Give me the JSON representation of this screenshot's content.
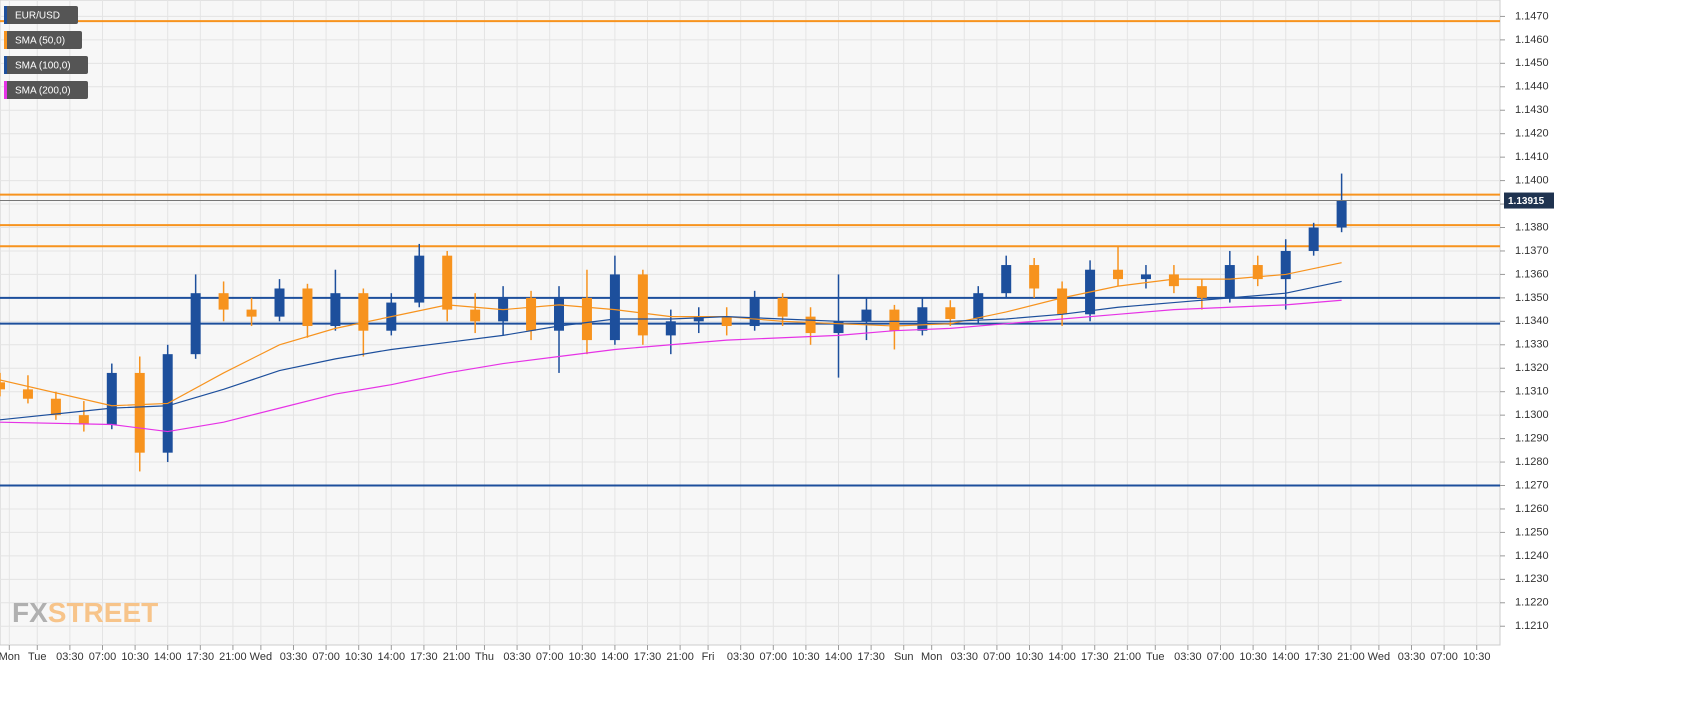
{
  "chart_data": {
    "type": "candlestick",
    "name": "EUR/USD",
    "up_color": "#1d4f9c",
    "down_color": "#f7931e",
    "x": [
      -4,
      -1,
      2,
      5,
      8,
      11,
      14,
      17,
      20,
      23,
      26,
      29,
      32,
      35,
      38,
      41,
      44,
      47,
      50,
      53,
      56,
      59,
      62,
      65,
      68,
      71,
      74,
      77,
      80,
      83,
      86,
      89,
      92,
      95,
      98,
      101,
      104,
      107,
      110,
      113,
      116,
      119,
      122,
      125,
      128,
      131,
      134,
      137,
      140
    ],
    "open": [
      1.1314,
      1.1311,
      1.1307,
      1.13,
      1.1296,
      1.1318,
      1.1284,
      1.1326,
      1.1352,
      1.1345,
      1.1342,
      1.1354,
      1.1338,
      1.1352,
      1.1336,
      1.1348,
      1.1368,
      1.1345,
      1.134,
      1.135,
      1.1336,
      1.135,
      1.1332,
      1.136,
      1.1334,
      1.134,
      1.1342,
      1.1338,
      1.135,
      1.1342,
      1.1335,
      1.134,
      1.1345,
      1.1336,
      1.1346,
      1.1341,
      1.1352,
      1.1364,
      1.1354,
      1.1343,
      1.1362,
      1.1358,
      1.136,
      1.1355,
      1.135,
      1.1364,
      1.1358,
      1.137,
      1.138
    ],
    "high": [
      1.1318,
      1.1317,
      1.131,
      1.1306,
      1.1322,
      1.1325,
      1.133,
      1.136,
      1.1357,
      1.135,
      1.1358,
      1.1356,
      1.1362,
      1.1354,
      1.1352,
      1.1373,
      1.137,
      1.1352,
      1.1355,
      1.1353,
      1.1355,
      1.1362,
      1.1368,
      1.1362,
      1.1345,
      1.1346,
      1.1346,
      1.1353,
      1.1352,
      1.1346,
      1.136,
      1.135,
      1.1347,
      1.135,
      1.1349,
      1.1355,
      1.1368,
      1.1367,
      1.1357,
      1.1366,
      1.1372,
      1.1364,
      1.1364,
      1.1358,
      1.137,
      1.1368,
      1.1375,
      1.1382,
      1.1403
    ],
    "low": [
      1.1308,
      1.1305,
      1.1298,
      1.1293,
      1.1294,
      1.1276,
      1.128,
      1.1324,
      1.134,
      1.1338,
      1.134,
      1.1333,
      1.1336,
      1.1325,
      1.1334,
      1.1346,
      1.134,
      1.1335,
      1.1334,
      1.1332,
      1.1318,
      1.1326,
      1.133,
      1.133,
      1.1326,
      1.1335,
      1.1334,
      1.1336,
      1.1338,
      1.133,
      1.1316,
      1.1332,
      1.1328,
      1.1334,
      1.1338,
      1.1339,
      1.135,
      1.135,
      1.1338,
      1.134,
      1.1355,
      1.1354,
      1.1352,
      1.1345,
      1.1348,
      1.1355,
      1.1345,
      1.1368,
      1.1378
    ],
    "close": [
      1.1311,
      1.1307,
      1.13,
      1.1296,
      1.1318,
      1.1284,
      1.1326,
      1.1352,
      1.1345,
      1.1342,
      1.1354,
      1.1338,
      1.1352,
      1.1336,
      1.1348,
      1.1368,
      1.1345,
      1.134,
      1.135,
      1.1336,
      1.135,
      1.1332,
      1.136,
      1.1334,
      1.134,
      1.1342,
      1.1338,
      1.135,
      1.1342,
      1.1335,
      1.134,
      1.1345,
      1.1336,
      1.1346,
      1.1341,
      1.1352,
      1.1364,
      1.1354,
      1.1343,
      1.1362,
      1.1358,
      1.136,
      1.1355,
      1.135,
      1.1364,
      1.1358,
      1.137,
      1.138,
      1.13915
    ],
    "series": [
      {
        "name": "SMA (50,0)",
        "color": "#f7931e",
        "x": [
          -4,
          8,
          14,
          20,
          26,
          32,
          38,
          44,
          50,
          56,
          62,
          68,
          74,
          80,
          86,
          92,
          98,
          104,
          110,
          116,
          122,
          128,
          134,
          140
        ],
        "values": [
          1.1315,
          1.1304,
          1.1305,
          1.1318,
          1.133,
          1.1337,
          1.1342,
          1.1347,
          1.1345,
          1.1347,
          1.1345,
          1.1342,
          1.1342,
          1.134,
          1.1339,
          1.1338,
          1.1339,
          1.1344,
          1.135,
          1.1355,
          1.1358,
          1.1358,
          1.136,
          1.1365
        ]
      },
      {
        "name": "SMA (100,0)",
        "color": "#1d4f9c",
        "x": [
          -4,
          8,
          14,
          20,
          26,
          32,
          38,
          44,
          50,
          56,
          62,
          68,
          74,
          80,
          86,
          92,
          98,
          104,
          110,
          116,
          122,
          128,
          134,
          140
        ],
        "values": [
          1.1298,
          1.1303,
          1.1304,
          1.1311,
          1.1319,
          1.1324,
          1.1328,
          1.1331,
          1.1334,
          1.1338,
          1.1341,
          1.1341,
          1.1342,
          1.1341,
          1.134,
          1.134,
          1.134,
          1.1341,
          1.1343,
          1.1346,
          1.1348,
          1.135,
          1.1352,
          1.1357
        ]
      },
      {
        "name": "SMA (200,0)",
        "color": "#e633e6",
        "x": [
          -4,
          8,
          14,
          20,
          26,
          32,
          38,
          44,
          50,
          56,
          62,
          68,
          74,
          80,
          86,
          92,
          98,
          104,
          110,
          116,
          122,
          128,
          134,
          140
        ],
        "values": [
          1.1297,
          1.1296,
          1.1293,
          1.1297,
          1.1303,
          1.1309,
          1.1313,
          1.1318,
          1.1322,
          1.1325,
          1.1328,
          1.133,
          1.1332,
          1.1333,
          1.1334,
          1.1336,
          1.1337,
          1.1339,
          1.1341,
          1.1343,
          1.1345,
          1.1346,
          1.1347,
          1.1349
        ]
      }
    ],
    "levels": [
      {
        "value": 1.1468,
        "color": "#f7931e"
      },
      {
        "value": 1.1394,
        "color": "#f7931e"
      },
      {
        "value": 1.1381,
        "color": "#f7931e"
      },
      {
        "value": 1.1372,
        "color": "#f7931e"
      },
      {
        "value": 1.135,
        "color": "#1d4f9c"
      },
      {
        "value": 1.1339,
        "color": "#1d4f9c"
      },
      {
        "value": 1.127,
        "color": "#1d4f9c"
      }
    ],
    "last_price": 1.13915,
    "watermark": [
      "FX",
      "STREET"
    ],
    "xlim": [
      -4,
      157
    ],
    "ylim": [
      1.1202,
      1.1477
    ],
    "grid": true,
    "xticks": [
      {
        "value": -3,
        "label": "Mon"
      },
      {
        "value": 0,
        "label": "Tue"
      },
      {
        "value": 3.5,
        "label": "03:30"
      },
      {
        "value": 7,
        "label": "07:00"
      },
      {
        "value": 10.5,
        "label": "10:30"
      },
      {
        "value": 14,
        "label": "14:00"
      },
      {
        "value": 17.5,
        "label": "17:30"
      },
      {
        "value": 21,
        "label": "21:00"
      },
      {
        "value": 24,
        "label": "Wed"
      },
      {
        "value": 27.5,
        "label": "03:30"
      },
      {
        "value": 31,
        "label": "07:00"
      },
      {
        "value": 34.5,
        "label": "10:30"
      },
      {
        "value": 38,
        "label": "14:00"
      },
      {
        "value": 41.5,
        "label": "17:30"
      },
      {
        "value": 45,
        "label": "21:00"
      },
      {
        "value": 48,
        "label": "Thu"
      },
      {
        "value": 51.5,
        "label": "03:30"
      },
      {
        "value": 55,
        "label": "07:00"
      },
      {
        "value": 58.5,
        "label": "10:30"
      },
      {
        "value": 62,
        "label": "14:00"
      },
      {
        "value": 65.5,
        "label": "17:30"
      },
      {
        "value": 69,
        "label": "21:00"
      },
      {
        "value": 72,
        "label": "Fri"
      },
      {
        "value": 75.5,
        "label": "03:30"
      },
      {
        "value": 79,
        "label": "07:00"
      },
      {
        "value": 82.5,
        "label": "10:30"
      },
      {
        "value": 86,
        "label": "14:00"
      },
      {
        "value": 89.5,
        "label": "17:30"
      },
      {
        "value": 93,
        "label": "Sun"
      },
      {
        "value": 96,
        "label": "Mon"
      },
      {
        "value": 99.5,
        "label": "03:30"
      },
      {
        "value": 103,
        "label": "07:00"
      },
      {
        "value": 106.5,
        "label": "10:30"
      },
      {
        "value": 110,
        "label": "14:00"
      },
      {
        "value": 113.5,
        "label": "17:30"
      },
      {
        "value": 117,
        "label": "21:00"
      },
      {
        "value": 120,
        "label": "Tue"
      },
      {
        "value": 123.5,
        "label": "03:30"
      },
      {
        "value": 127,
        "label": "07:00"
      },
      {
        "value": 130.5,
        "label": "10:30"
      },
      {
        "value": 134,
        "label": "14:00"
      },
      {
        "value": 137.5,
        "label": "17:30"
      },
      {
        "value": 141,
        "label": "21:00"
      },
      {
        "value": 144,
        "label": "Wed"
      },
      {
        "value": 147.5,
        "label": "03:30"
      },
      {
        "value": 151,
        "label": "07:00"
      },
      {
        "value": 154.5,
        "label": "10:30"
      }
    ],
    "yticks": [
      {
        "value": 1.121,
        "label": "1.1210"
      },
      {
        "value": 1.122,
        "label": "1.1220"
      },
      {
        "value": 1.123,
        "label": "1.1230"
      },
      {
        "value": 1.124,
        "label": "1.1240"
      },
      {
        "value": 1.125,
        "label": "1.1250"
      },
      {
        "value": 1.126,
        "label": "1.1260"
      },
      {
        "value": 1.127,
        "label": "1.1270"
      },
      {
        "value": 1.128,
        "label": "1.1280"
      },
      {
        "value": 1.129,
        "label": "1.1290"
      },
      {
        "value": 1.13,
        "label": "1.1300"
      },
      {
        "value": 1.131,
        "label": "1.1310"
      },
      {
        "value": 1.132,
        "label": "1.1320"
      },
      {
        "value": 1.133,
        "label": "1.1330"
      },
      {
        "value": 1.134,
        "label": "1.1340"
      },
      {
        "value": 1.135,
        "label": "1.1350"
      },
      {
        "value": 1.136,
        "label": "1.1360"
      },
      {
        "value": 1.137,
        "label": "1.1370"
      },
      {
        "value": 1.138,
        "label": "1.1380"
      },
      {
        "value": 1.139,
        "label": "1.1390"
      },
      {
        "value": 1.14,
        "label": "1.1400"
      },
      {
        "value": 1.141,
        "label": "1.1410"
      },
      {
        "value": 1.142,
        "label": "1.1420"
      },
      {
        "value": 1.143,
        "label": "1.1430"
      },
      {
        "value": 1.144,
        "label": "1.1440"
      },
      {
        "value": 1.145,
        "label": "1.1450"
      },
      {
        "value": 1.146,
        "label": "1.1460"
      },
      {
        "value": 1.147,
        "label": "1.1470"
      }
    ]
  }
}
